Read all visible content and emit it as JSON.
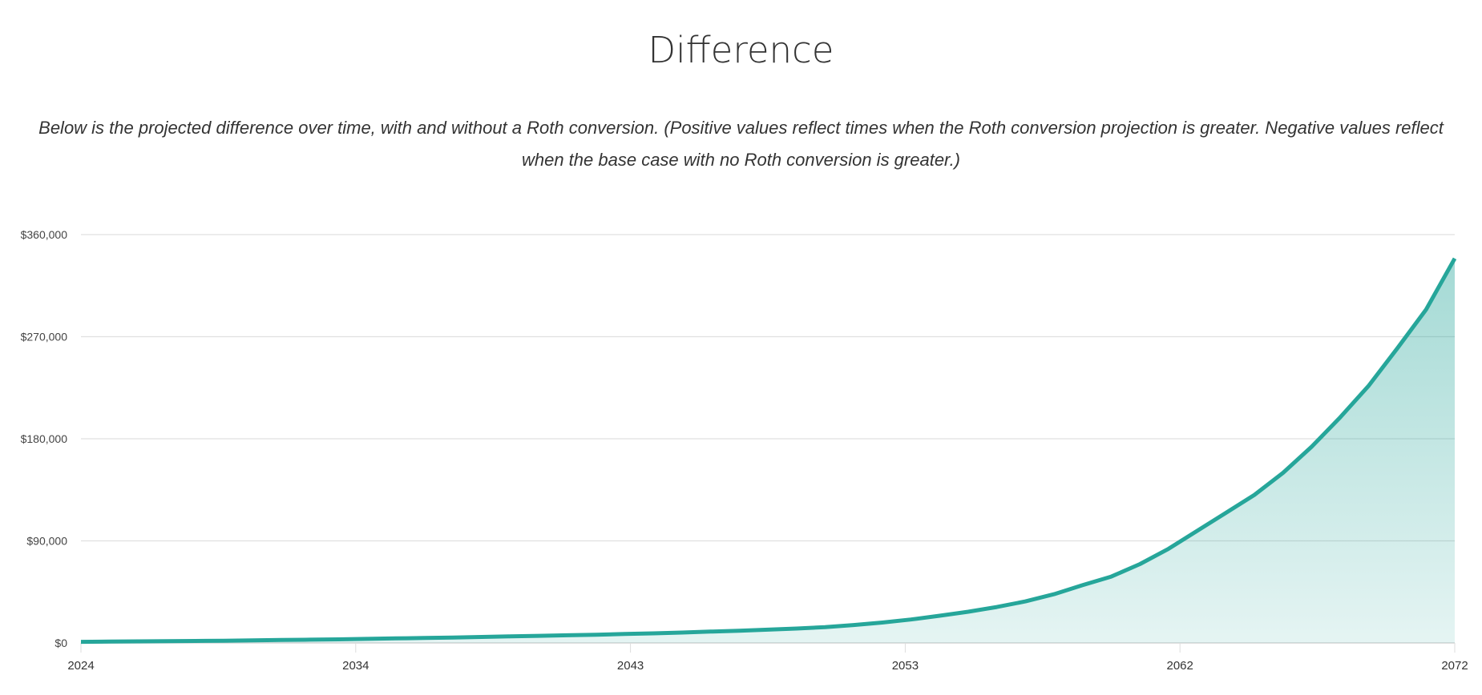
{
  "header": {
    "title": "Difference",
    "subtitle": "Below is the projected difference over time, with and without a Roth conversion. (Positive values reflect times when the Roth conversion projection is greater. Negative values reflect when the base case with no Roth conversion is greater.)"
  },
  "chart_data": {
    "type": "area",
    "title": "",
    "xlabel": "",
    "ylabel": "",
    "ylim": [
      0,
      360000
    ],
    "grid": true,
    "legend": "none",
    "colors": {
      "line": "#26a69a",
      "fill": "#26a69a",
      "grid": "#e0e0e0"
    },
    "y_ticks": [
      0,
      90000,
      180000,
      270000,
      360000
    ],
    "y_tick_labels": [
      "$0",
      "$90,000",
      "$180,000",
      "$270,000",
      "$360,000"
    ],
    "x_tick_labels": [
      "2024",
      "2034",
      "2043",
      "2053",
      "2062",
      "2072"
    ],
    "x": [
      2024,
      2025,
      2026,
      2027,
      2028,
      2029,
      2030,
      2031,
      2032,
      2033,
      2034,
      2035,
      2036,
      2037,
      2038,
      2039,
      2040,
      2041,
      2042,
      2043,
      2044,
      2045,
      2046,
      2047,
      2048,
      2049,
      2050,
      2051,
      2052,
      2053,
      2054,
      2055,
      2056,
      2057,
      2058,
      2059,
      2060,
      2061,
      2062,
      2063,
      2064,
      2065,
      2066,
      2067,
      2068,
      2069,
      2070,
      2071,
      2072
    ],
    "values": [
      1000,
      1200,
      1400,
      1600,
      1800,
      2000,
      2300,
      2600,
      2900,
      3200,
      3600,
      4000,
      4400,
      4800,
      5300,
      5800,
      6300,
      6800,
      7300,
      7900,
      8500,
      9200,
      10000,
      10800,
      11700,
      12700,
      14000,
      15800,
      18000,
      20700,
      24000,
      27500,
      31700,
      36600,
      43000,
      51000,
      58500,
      69500,
      83000,
      98800,
      114600,
      130500,
      150000,
      173000,
      199000,
      227000,
      260000,
      294000,
      339000
    ]
  }
}
